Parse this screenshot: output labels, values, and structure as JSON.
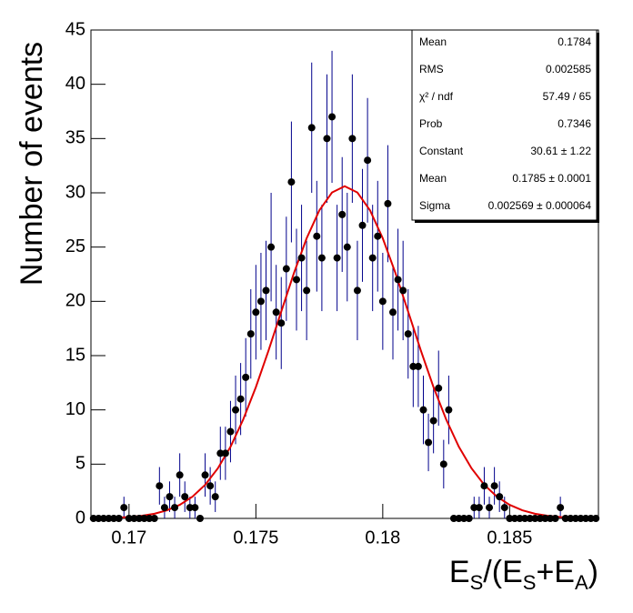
{
  "chart_data": {
    "type": "histogram-fit",
    "ylabel": "Number of events",
    "xlabel": [
      "E",
      "S",
      "/(E",
      "S",
      "+E",
      "A",
      ")"
    ],
    "xlim": [
      0.1685,
      0.1885
    ],
    "ylim": [
      0,
      45
    ],
    "xticks": [
      0.17,
      0.175,
      0.18,
      0.185
    ],
    "yticks": [
      0,
      5,
      10,
      15,
      20,
      25,
      30,
      35,
      40,
      45
    ],
    "marker_color": "#000000",
    "error_color": "#00008b",
    "x": [
      0.1686,
      0.1688,
      0.169,
      0.1692,
      0.1694,
      0.1696,
      0.1698,
      0.17,
      0.1702,
      0.1704,
      0.1706,
      0.1708,
      0.171,
      0.1712,
      0.1714,
      0.1716,
      0.1718,
      0.172,
      0.1722,
      0.1724,
      0.1726,
      0.1728,
      0.173,
      0.1732,
      0.1734,
      0.1736,
      0.1738,
      0.174,
      0.1742,
      0.1744,
      0.1746,
      0.1748,
      0.175,
      0.1752,
      0.1754,
      0.1756,
      0.1758,
      0.176,
      0.1762,
      0.1764,
      0.1766,
      0.1768,
      0.177,
      0.1772,
      0.1774,
      0.1776,
      0.1778,
      0.178,
      0.1782,
      0.1784,
      0.1786,
      0.1788,
      0.179,
      0.1792,
      0.1794,
      0.1796,
      0.1798,
      0.18,
      0.1802,
      0.1804,
      0.1806,
      0.1808,
      0.181,
      0.1812,
      0.1814,
      0.1816,
      0.1818,
      0.182,
      0.1822,
      0.1824,
      0.1826,
      0.1828,
      0.183,
      0.1832,
      0.1834,
      0.1836,
      0.1838,
      0.184,
      0.1842,
      0.1844,
      0.1846,
      0.1848,
      0.185,
      0.1852,
      0.1854,
      0.1856,
      0.1858,
      0.186,
      0.1862,
      0.1864,
      0.1866,
      0.1868,
      0.187,
      0.1872,
      0.1874,
      0.1876,
      0.1878,
      0.188,
      0.1882,
      0.1884
    ],
    "values": [
      0,
      0,
      0,
      0,
      0,
      0,
      1,
      0,
      0,
      0,
      0,
      0,
      0,
      3,
      1,
      2,
      1,
      4,
      2,
      1,
      1,
      0,
      4,
      3,
      2,
      6,
      6,
      8,
      10,
      11,
      13,
      17,
      19,
      20,
      21,
      25,
      19,
      18,
      23,
      31,
      22,
      24,
      21,
      36,
      26,
      24,
      35,
      37,
      24,
      28,
      25,
      35,
      21,
      27,
      33,
      24,
      26,
      20,
      29,
      19,
      22,
      21,
      17,
      14,
      14,
      10,
      7,
      9,
      12,
      5,
      10,
      0,
      0,
      0,
      0,
      1,
      1,
      3,
      1,
      3,
      2,
      1,
      0,
      0,
      0,
      0,
      0,
      0,
      0,
      0,
      0,
      0,
      1,
      0,
      0,
      0,
      0,
      0,
      0,
      0
    ],
    "errors": [
      0,
      0,
      0,
      0,
      0,
      0,
      1,
      0,
      0,
      0,
      0,
      0,
      0,
      1.73,
      1,
      1.41,
      1,
      2,
      1.41,
      1,
      1,
      0,
      2,
      1.73,
      1.41,
      2.45,
      2.45,
      2.83,
      3.16,
      3.32,
      3.61,
      4.12,
      4.36,
      4.47,
      4.58,
      5,
      4.36,
      4.24,
      4.8,
      5.57,
      4.69,
      4.9,
      4.58,
      6,
      5.1,
      4.9,
      5.92,
      6.08,
      4.9,
      5.29,
      5,
      5.92,
      4.58,
      5.2,
      5.74,
      4.9,
      5.1,
      4.47,
      5.39,
      4.36,
      4.69,
      4.58,
      4.12,
      3.74,
      3.74,
      3.16,
      2.65,
      3,
      3.46,
      2.24,
      3.16,
      0,
      0,
      0,
      0,
      1,
      1,
      1.73,
      1,
      1.73,
      1.41,
      1,
      0,
      0,
      0,
      0,
      0,
      0,
      0,
      0,
      0,
      0,
      1,
      0,
      0,
      0,
      0,
      0,
      0,
      0
    ],
    "fit": {
      "color": "#e00000",
      "x": [
        0.169,
        0.1695,
        0.17,
        0.1705,
        0.171,
        0.1715,
        0.172,
        0.1725,
        0.173,
        0.1735,
        0.174,
        0.1745,
        0.175,
        0.1755,
        0.176,
        0.1765,
        0.177,
        0.1775,
        0.178,
        0.1785,
        0.179,
        0.1795,
        0.18,
        0.1805,
        0.181,
        0.1815,
        0.182,
        0.1825,
        0.183,
        0.1835,
        0.184,
        0.1845,
        0.185,
        0.1855,
        0.186,
        0.1865,
        0.187,
        0.1875,
        0.188
      ],
      "values": [
        0.033,
        0.066,
        0.128,
        0.24,
        0.43,
        0.75,
        1.25,
        2.0,
        3.09,
        4.61,
        6.6,
        9.11,
        12.1,
        15.48,
        19.06,
        22.61,
        25.81,
        28.38,
        30.03,
        30.61,
        30.03,
        28.38,
        25.81,
        22.61,
        19.06,
        15.48,
        12.1,
        9.11,
        6.6,
        4.61,
        3.09,
        2.0,
        1.25,
        0.75,
        0.43,
        0.24,
        0.128,
        0.066,
        0.033
      ]
    },
    "stats": [
      {
        "label": "Mean",
        "value": 0.1784
      },
      {
        "label": "RMS",
        "value": 0.002585
      },
      {
        "label": "χ² / ndf",
        "value": "57.49 / 65"
      },
      {
        "label": "Prob",
        "value": 0.7346
      },
      {
        "label": "Constant",
        "value": "30.61 ± 1.22"
      },
      {
        "label": "Mean",
        "value": "0.1785 ± 0.0001"
      },
      {
        "label": "Sigma",
        "value": "0.002569 ± 0.000064"
      }
    ]
  }
}
